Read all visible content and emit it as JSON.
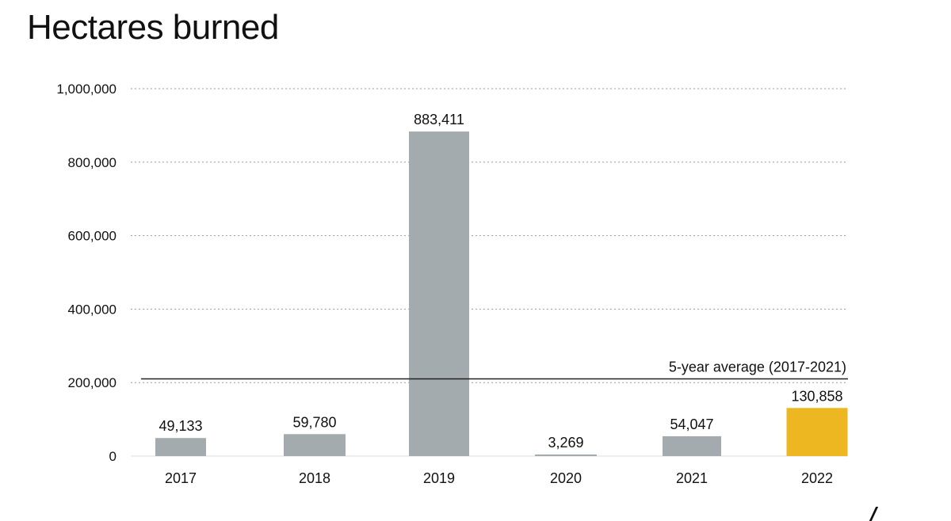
{
  "chart_data": {
    "type": "bar",
    "title": "Hectares burned",
    "categories": [
      "2017",
      "2018",
      "2019",
      "2020",
      "2021",
      "2022"
    ],
    "values": [
      49133,
      59780,
      883411,
      3269,
      54047,
      130858
    ],
    "value_labels": [
      "49,133",
      "59,780",
      "883,411",
      "3,269",
      "54,047",
      "130,858"
    ],
    "highlight_index": 5,
    "ylim": [
      0,
      1000000
    ],
    "yticks": [
      0,
      200000,
      400000,
      600000,
      800000,
      1000000
    ],
    "ytick_labels": [
      "0",
      "200,000",
      "400,000",
      "600,000",
      "800,000",
      "1,000,000"
    ],
    "grid": "dotted horizontal",
    "reference_line": {
      "value": 210000,
      "label": "5-year average (2017-2021)"
    },
    "colors": {
      "bar": "#a4abae",
      "highlight": "#ecb720",
      "grid": "#9a9a9a",
      "reference": "#222222"
    }
  }
}
